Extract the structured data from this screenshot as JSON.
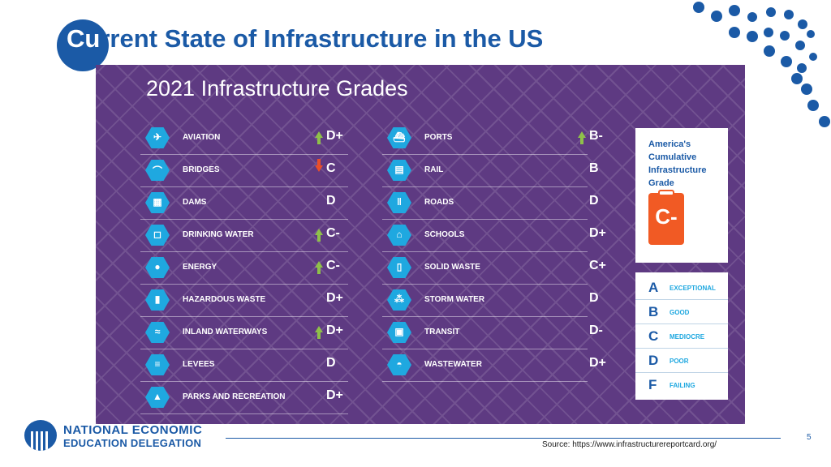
{
  "slide": {
    "title_first": "Cu",
    "title_rest": "rrent State of Infrastructure in the US",
    "page_number": "5",
    "source": "Source: https://www.infrastructurereportcard.org/",
    "org_line1": "NATIONAL ECONOMIC",
    "org_line2": "EDUCATION DELEGATION"
  },
  "panel": {
    "title": "2021 Infrastructure Grades",
    "left_column": [
      {
        "label": "AVIATION",
        "grade": "D+",
        "trend": "up",
        "icon": "plane-icon",
        "glyph": "✈"
      },
      {
        "label": "BRIDGES",
        "grade": "C",
        "trend": "down",
        "icon": "bridge-icon",
        "glyph": "⌒"
      },
      {
        "label": "DAMS",
        "grade": "D",
        "trend": "none",
        "icon": "dam-icon",
        "glyph": "▦"
      },
      {
        "label": "DRINKING WATER",
        "grade": "C-",
        "trend": "up",
        "icon": "water-glass-icon",
        "glyph": "◻"
      },
      {
        "label": "ENERGY",
        "grade": "C-",
        "trend": "up",
        "icon": "lightbulb-icon",
        "glyph": "●"
      },
      {
        "label": "HAZARDOUS WASTE",
        "grade": "D+",
        "trend": "none",
        "icon": "hazard-barrel-icon",
        "glyph": "▮"
      },
      {
        "label": "INLAND WATERWAYS",
        "grade": "D+",
        "trend": "up",
        "icon": "waterway-icon",
        "glyph": "≈"
      },
      {
        "label": "LEVEES",
        "grade": "D",
        "trend": "none",
        "icon": "levee-icon",
        "glyph": "≡"
      },
      {
        "label": "PARKS AND RECREATION",
        "grade": "D+",
        "trend": "none",
        "icon": "tree-icon",
        "glyph": "▲"
      }
    ],
    "right_column": [
      {
        "label": "PORTS",
        "grade": "B-",
        "trend": "up",
        "icon": "ship-icon",
        "glyph": "⛴"
      },
      {
        "label": "RAIL",
        "grade": "B",
        "trend": "none",
        "icon": "train-icon",
        "glyph": "▤"
      },
      {
        "label": "ROADS",
        "grade": "D",
        "trend": "none",
        "icon": "road-icon",
        "glyph": "‖"
      },
      {
        "label": "SCHOOLS",
        "grade": "D+",
        "trend": "none",
        "icon": "school-icon",
        "glyph": "⌂"
      },
      {
        "label": "SOLID WASTE",
        "grade": "C+",
        "trend": "none",
        "icon": "trash-can-icon",
        "glyph": "▯"
      },
      {
        "label": "STORM WATER",
        "grade": "D",
        "trend": "none",
        "icon": "rain-icon",
        "glyph": "⁂"
      },
      {
        "label": "TRANSIT",
        "grade": "D-",
        "trend": "none",
        "icon": "bus-icon",
        "glyph": "▣"
      },
      {
        "label": "WASTEWATER",
        "grade": "D+",
        "trend": "none",
        "icon": "toilet-icon",
        "glyph": "◓"
      }
    ],
    "cumulative": {
      "text": "America's Cumulative Infrastructure Grade",
      "grade": "C-"
    },
    "legend": [
      {
        "letter": "A",
        "word": "EXCEPTIONAL"
      },
      {
        "letter": "B",
        "word": "GOOD"
      },
      {
        "letter": "C",
        "word": "MEDIOCRE"
      },
      {
        "letter": "D",
        "word": "POOR"
      },
      {
        "letter": "F",
        "word": "FAILING"
      }
    ]
  },
  "colors": {
    "brand_blue": "#1b5aa6",
    "panel_purple": "#5e3a82",
    "icon_cyan": "#1fa8e0",
    "trend_up": "#8fc04a",
    "trend_down": "#e94e2a",
    "cumulative_orange": "#f15a24"
  }
}
